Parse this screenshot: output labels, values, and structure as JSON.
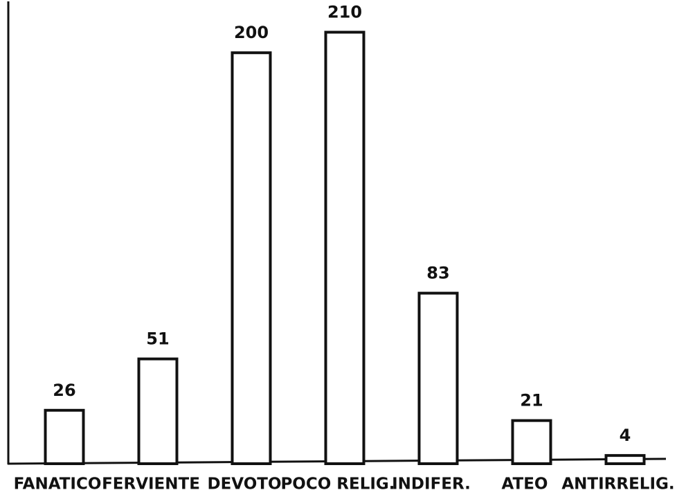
{
  "chart_data": {
    "type": "bar",
    "categories": [
      "FANATICO",
      "FERVIENTE",
      "DEVOTO",
      "POCO RELIG.",
      "INDIFER.",
      "ATEO",
      "ANTIRRELIG."
    ],
    "values": [
      26,
      51,
      200,
      210,
      83,
      21,
      4
    ],
    "color": "#ffffff",
    "ylim": [
      0,
      225
    ]
  }
}
